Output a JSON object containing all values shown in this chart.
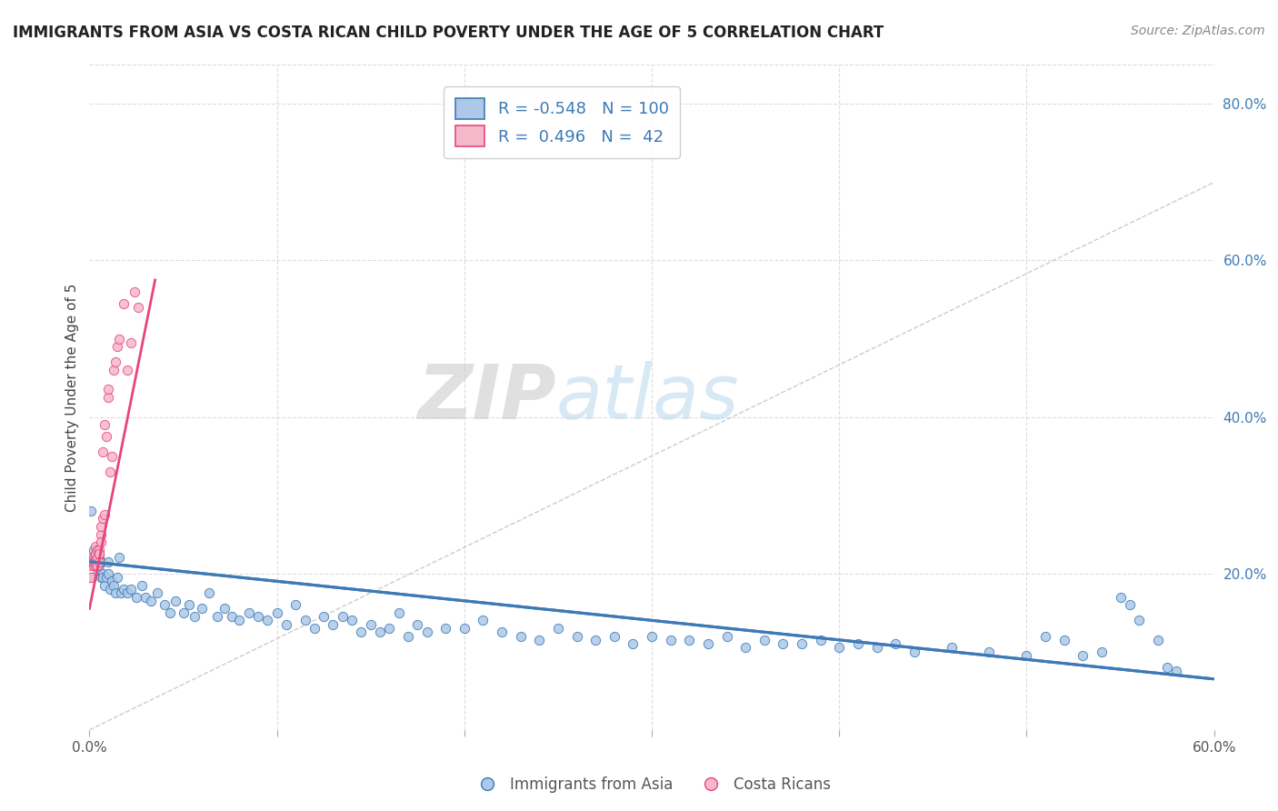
{
  "title": "IMMIGRANTS FROM ASIA VS COSTA RICAN CHILD POVERTY UNDER THE AGE OF 5 CORRELATION CHART",
  "source": "Source: ZipAtlas.com",
  "ylabel": "Child Poverty Under the Age of 5",
  "xlim": [
    0.0,
    0.6
  ],
  "ylim": [
    0.0,
    0.85
  ],
  "x_ticks": [
    0.0,
    0.1,
    0.2,
    0.3,
    0.4,
    0.5,
    0.6
  ],
  "x_tick_labels": [
    "0.0%",
    "",
    "",
    "",
    "",
    "",
    "60.0%"
  ],
  "y_ticks_right": [
    0.0,
    0.2,
    0.4,
    0.6,
    0.8
  ],
  "y_tick_labels_right": [
    "",
    "20.0%",
    "40.0%",
    "60.0%",
    "80.0%"
  ],
  "blue_color": "#adc8e8",
  "pink_color": "#f5b8cb",
  "blue_line_color": "#3d7ab5",
  "pink_line_color": "#e8457a",
  "blue_R": -0.548,
  "blue_N": 100,
  "pink_R": 0.496,
  "pink_N": 42,
  "legend_label_blue": "Immigrants from Asia",
  "legend_label_pink": "Costa Ricans",
  "watermark_zip": "ZIP",
  "watermark_atlas": "atlas",
  "blue_scatter_x": [
    0.001,
    0.002,
    0.003,
    0.004,
    0.005,
    0.005,
    0.006,
    0.006,
    0.007,
    0.007,
    0.008,
    0.009,
    0.01,
    0.01,
    0.011,
    0.012,
    0.013,
    0.014,
    0.015,
    0.016,
    0.017,
    0.018,
    0.02,
    0.022,
    0.025,
    0.028,
    0.03,
    0.033,
    0.036,
    0.04,
    0.043,
    0.046,
    0.05,
    0.053,
    0.056,
    0.06,
    0.064,
    0.068,
    0.072,
    0.076,
    0.08,
    0.085,
    0.09,
    0.095,
    0.1,
    0.105,
    0.11,
    0.115,
    0.12,
    0.125,
    0.13,
    0.135,
    0.14,
    0.145,
    0.15,
    0.155,
    0.16,
    0.165,
    0.17,
    0.175,
    0.18,
    0.19,
    0.2,
    0.21,
    0.22,
    0.23,
    0.24,
    0.25,
    0.26,
    0.27,
    0.28,
    0.29,
    0.3,
    0.31,
    0.32,
    0.33,
    0.34,
    0.35,
    0.36,
    0.37,
    0.38,
    0.39,
    0.4,
    0.41,
    0.42,
    0.43,
    0.44,
    0.46,
    0.48,
    0.5,
    0.51,
    0.52,
    0.53,
    0.54,
    0.55,
    0.555,
    0.56,
    0.57,
    0.575,
    0.58
  ],
  "blue_scatter_y": [
    0.28,
    0.23,
    0.215,
    0.2,
    0.22,
    0.21,
    0.195,
    0.215,
    0.2,
    0.195,
    0.185,
    0.195,
    0.2,
    0.215,
    0.18,
    0.19,
    0.185,
    0.175,
    0.195,
    0.22,
    0.175,
    0.18,
    0.175,
    0.18,
    0.17,
    0.185,
    0.17,
    0.165,
    0.175,
    0.16,
    0.15,
    0.165,
    0.15,
    0.16,
    0.145,
    0.155,
    0.175,
    0.145,
    0.155,
    0.145,
    0.14,
    0.15,
    0.145,
    0.14,
    0.15,
    0.135,
    0.16,
    0.14,
    0.13,
    0.145,
    0.135,
    0.145,
    0.14,
    0.125,
    0.135,
    0.125,
    0.13,
    0.15,
    0.12,
    0.135,
    0.125,
    0.13,
    0.13,
    0.14,
    0.125,
    0.12,
    0.115,
    0.13,
    0.12,
    0.115,
    0.12,
    0.11,
    0.12,
    0.115,
    0.115,
    0.11,
    0.12,
    0.105,
    0.115,
    0.11,
    0.11,
    0.115,
    0.105,
    0.11,
    0.105,
    0.11,
    0.1,
    0.105,
    0.1,
    0.095,
    0.12,
    0.115,
    0.095,
    0.1,
    0.17,
    0.16,
    0.14,
    0.115,
    0.08,
    0.075
  ],
  "pink_scatter_x": [
    0.0005,
    0.001,
    0.001,
    0.001,
    0.001,
    0.002,
    0.002,
    0.002,
    0.002,
    0.003,
    0.003,
    0.003,
    0.003,
    0.003,
    0.004,
    0.004,
    0.004,
    0.005,
    0.005,
    0.005,
    0.005,
    0.006,
    0.006,
    0.006,
    0.007,
    0.007,
    0.008,
    0.008,
    0.009,
    0.01,
    0.01,
    0.011,
    0.012,
    0.013,
    0.014,
    0.015,
    0.016,
    0.018,
    0.02,
    0.022,
    0.024,
    0.026
  ],
  "pink_scatter_y": [
    0.195,
    0.21,
    0.22,
    0.215,
    0.195,
    0.21,
    0.22,
    0.215,
    0.215,
    0.235,
    0.21,
    0.22,
    0.225,
    0.215,
    0.21,
    0.22,
    0.23,
    0.215,
    0.225,
    0.23,
    0.225,
    0.25,
    0.24,
    0.26,
    0.27,
    0.355,
    0.275,
    0.39,
    0.375,
    0.425,
    0.435,
    0.33,
    0.35,
    0.46,
    0.47,
    0.49,
    0.5,
    0.545,
    0.46,
    0.495,
    0.56,
    0.54
  ],
  "ref_line_x": [
    0.0,
    0.6
  ],
  "ref_line_y": [
    0.0,
    0.7
  ],
  "pink_trend_x0": 0.0,
  "pink_trend_y0": 0.155,
  "pink_trend_x1": 0.035,
  "pink_trend_y1": 0.575,
  "blue_trend_x0": 0.0,
  "blue_trend_y0": 0.215,
  "blue_trend_x1": 0.6,
  "blue_trend_y1": 0.065
}
